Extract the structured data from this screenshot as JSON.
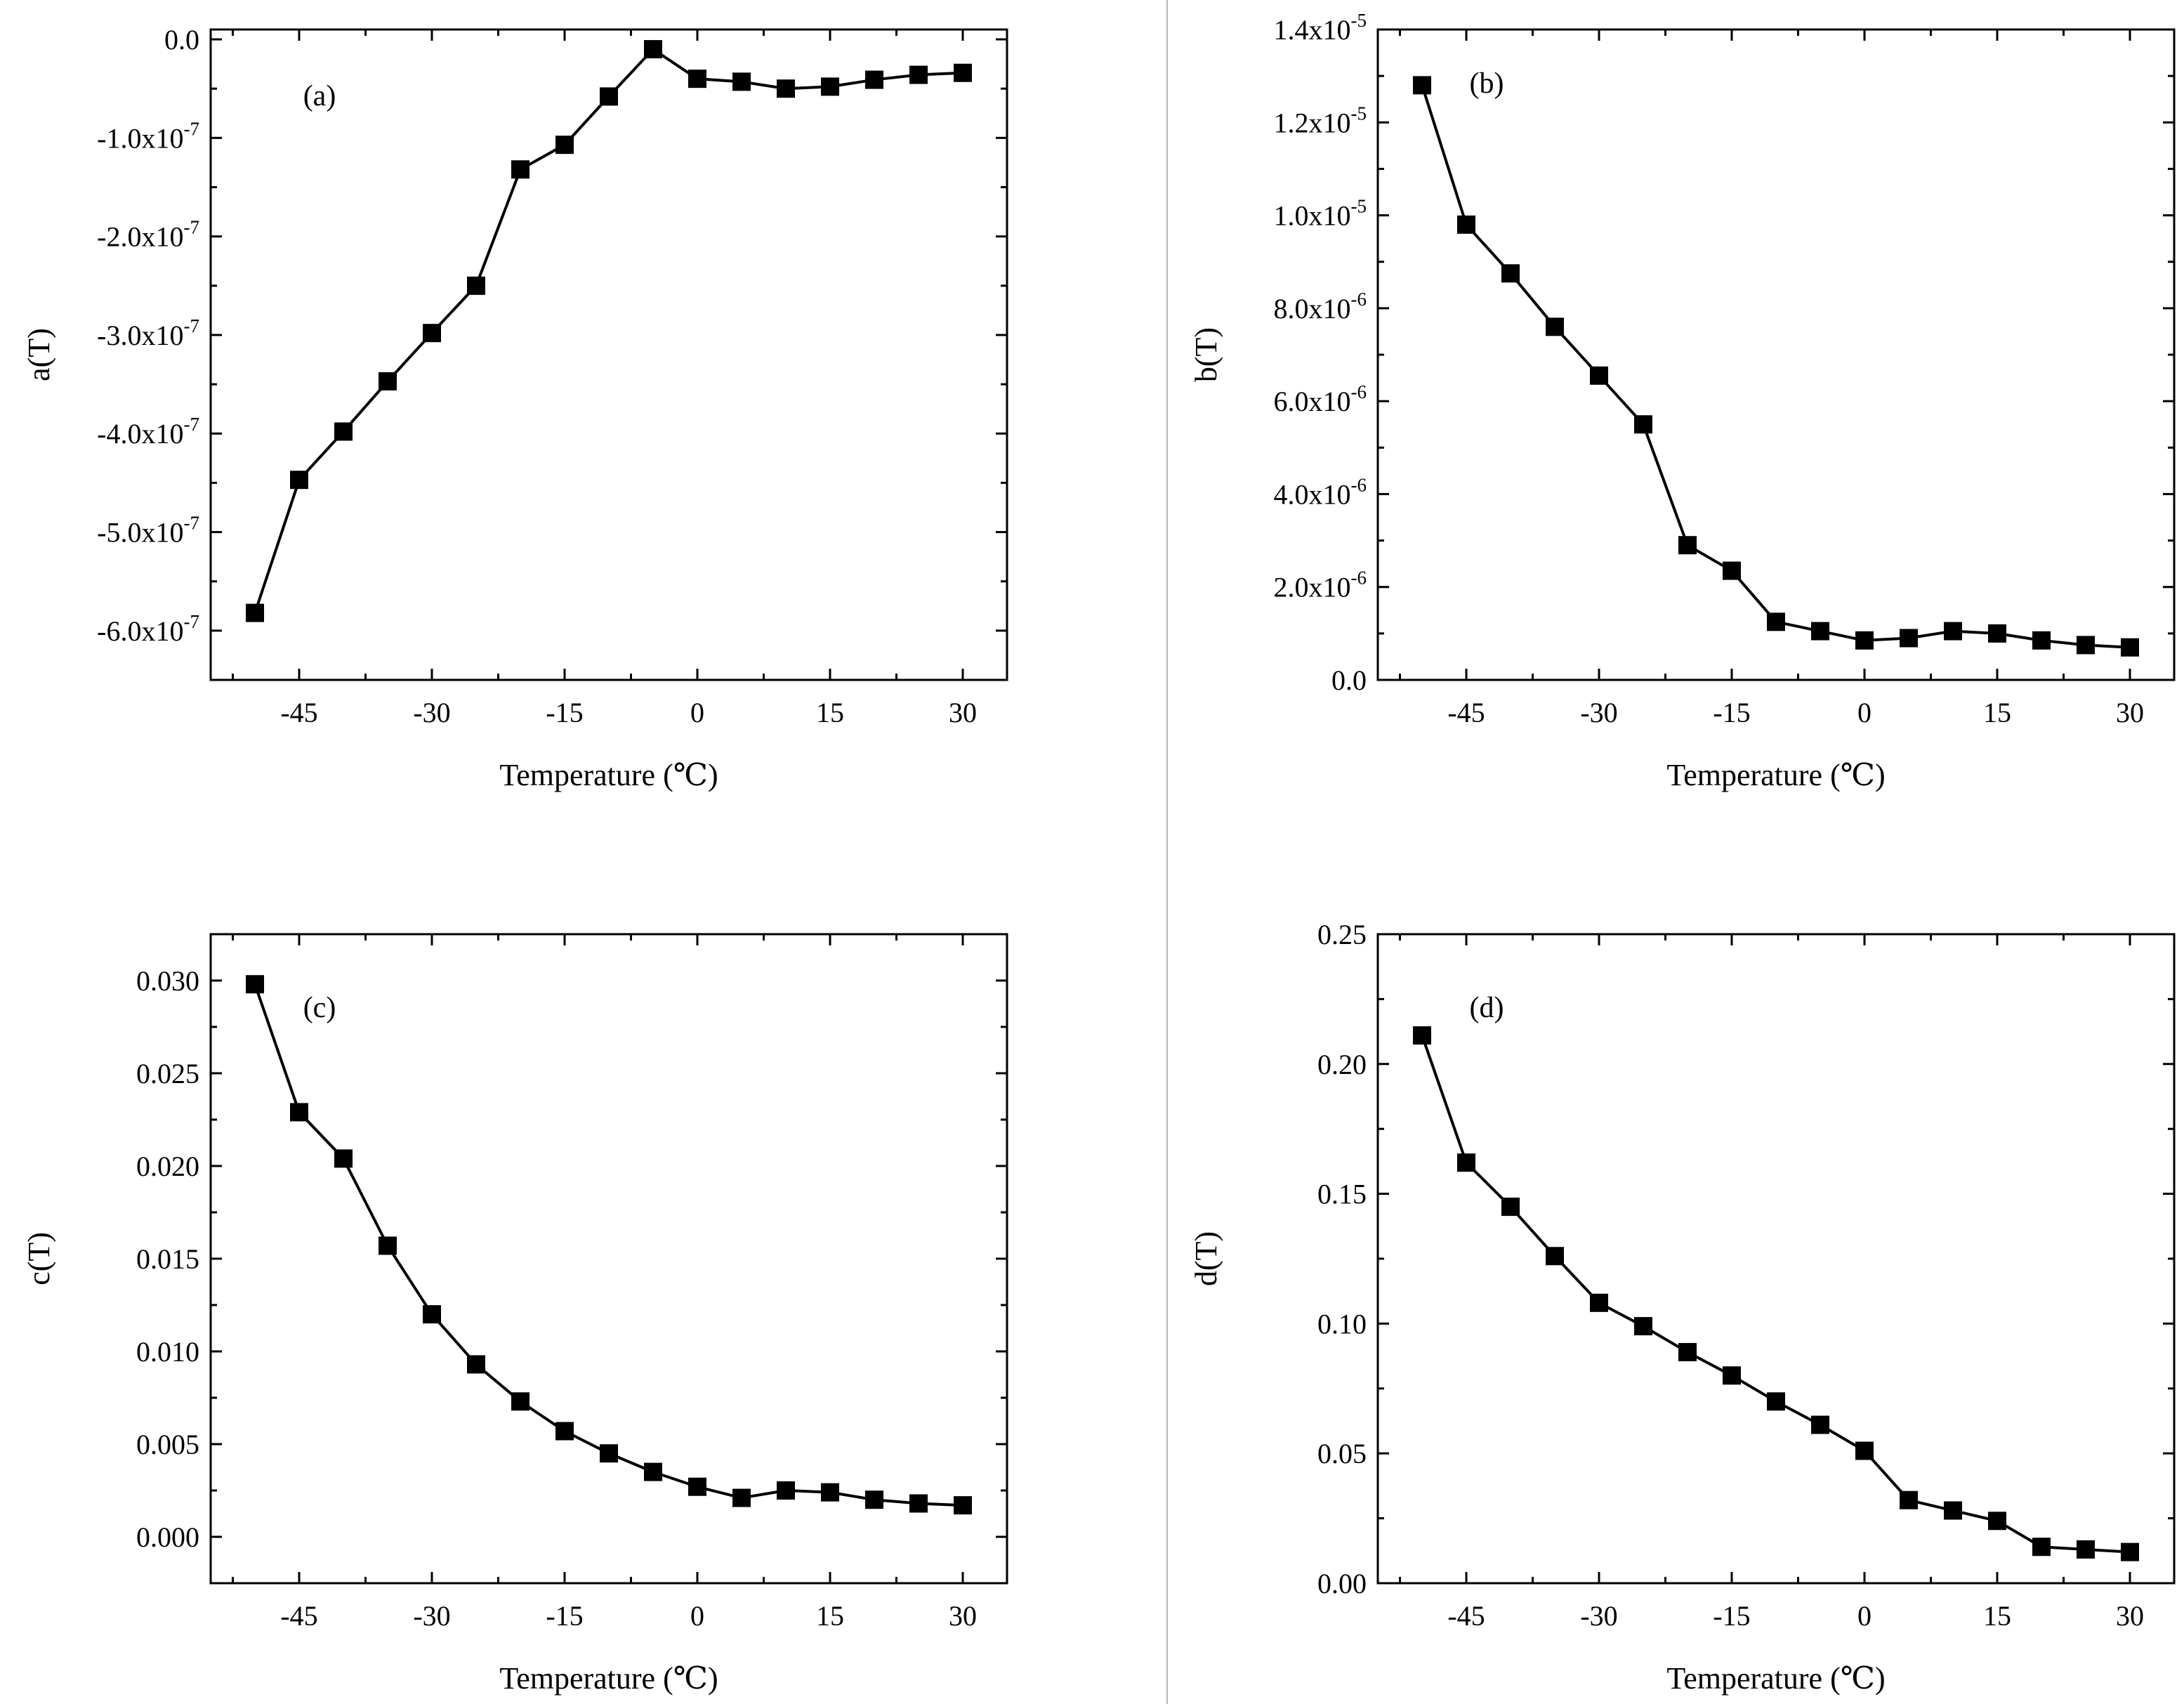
{
  "chart_data": [
    {
      "type": "line",
      "panel_label": "(a)",
      "xlabel": "Temperature (℃)",
      "ylabel": "a(T)",
      "xlim": [
        -55,
        35
      ],
      "ylim": [
        -6.5e-07,
        1e-08
      ],
      "xticks": [
        -45,
        -30,
        -15,
        0,
        15,
        30
      ],
      "yticks": [
        {
          "value": 0,
          "mantissa": "0.0",
          "exp": ""
        },
        {
          "value": -1e-07,
          "mantissa": "-1.0x10",
          "exp": "-7"
        },
        {
          "value": -2e-07,
          "mantissa": "-2.0x10",
          "exp": "-7"
        },
        {
          "value": -3e-07,
          "mantissa": "-3.0x10",
          "exp": "-7"
        },
        {
          "value": -4e-07,
          "mantissa": "-4.0x10",
          "exp": "-7"
        },
        {
          "value": -5e-07,
          "mantissa": "-5.0x10",
          "exp": "-7"
        },
        {
          "value": -6e-07,
          "mantissa": "-6.0x10",
          "exp": "-7"
        }
      ],
      "x": [
        -50,
        -45,
        -40,
        -35,
        -30,
        -25,
        -20,
        -15,
        -10,
        -5,
        0,
        5,
        10,
        15,
        20,
        25,
        30
      ],
      "values": [
        -5.82e-07,
        -4.47e-07,
        -3.98e-07,
        -3.47e-07,
        -2.98e-07,
        -2.5e-07,
        -1.32e-07,
        -1.07e-07,
        -5.8e-08,
        -1e-08,
        -4e-08,
        -4.3e-08,
        -5e-08,
        -4.8e-08,
        -4.1e-08,
        -3.6e-08,
        -3.4e-08
      ]
    },
    {
      "type": "line",
      "panel_label": "(b)",
      "xlabel": "Temperature (℃)",
      "ylabel": "b(T)",
      "xlim": [
        -55,
        35
      ],
      "ylim": [
        0,
        1.4e-05
      ],
      "xticks": [
        -45,
        -30,
        -15,
        0,
        15,
        30
      ],
      "yticks": [
        {
          "value": 0,
          "mantissa": "0.0",
          "exp": ""
        },
        {
          "value": 2e-06,
          "mantissa": "2.0x10",
          "exp": "-6"
        },
        {
          "value": 4e-06,
          "mantissa": "4.0x10",
          "exp": "-6"
        },
        {
          "value": 6e-06,
          "mantissa": "6.0x10",
          "exp": "-6"
        },
        {
          "value": 8e-06,
          "mantissa": "8.0x10",
          "exp": "-6"
        },
        {
          "value": 1e-05,
          "mantissa": "1.0x10",
          "exp": "-5"
        },
        {
          "value": 1.2e-05,
          "mantissa": "1.2x10",
          "exp": "-5"
        },
        {
          "value": 1.4e-05,
          "mantissa": "1.4x10",
          "exp": "-5"
        }
      ],
      "x": [
        -50,
        -45,
        -40,
        -35,
        -30,
        -25,
        -20,
        -15,
        -10,
        -5,
        0,
        5,
        10,
        15,
        20,
        25,
        30
      ],
      "values": [
        1.28e-05,
        9.8e-06,
        8.75e-06,
        7.6e-06,
        6.55e-06,
        5.5e-06,
        2.9e-06,
        2.35e-06,
        1.25e-06,
        1.05e-06,
        8.5e-07,
        9e-07,
        1.05e-06,
        1e-06,
        8.5e-07,
        7.5e-07,
        7e-07
      ]
    },
    {
      "type": "line",
      "panel_label": "(c)",
      "xlabel": "Temperature (℃)",
      "ylabel": "c(T)",
      "xlim": [
        -55,
        35
      ],
      "ylim": [
        -0.0025,
        0.0325
      ],
      "xticks": [
        -45,
        -30,
        -15,
        0,
        15,
        30
      ],
      "yticks": [
        {
          "value": 0,
          "mantissa": "0.000",
          "exp": ""
        },
        {
          "value": 0.005,
          "mantissa": "0.005",
          "exp": ""
        },
        {
          "value": 0.01,
          "mantissa": "0.010",
          "exp": ""
        },
        {
          "value": 0.015,
          "mantissa": "0.015",
          "exp": ""
        },
        {
          "value": 0.02,
          "mantissa": "0.020",
          "exp": ""
        },
        {
          "value": 0.025,
          "mantissa": "0.025",
          "exp": ""
        },
        {
          "value": 0.03,
          "mantissa": "0.030",
          "exp": ""
        }
      ],
      "x": [
        -50,
        -45,
        -40,
        -35,
        -30,
        -25,
        -20,
        -15,
        -10,
        -5,
        0,
        5,
        10,
        15,
        20,
        25,
        30
      ],
      "values": [
        0.0298,
        0.0229,
        0.0204,
        0.0157,
        0.012,
        0.0093,
        0.0073,
        0.0057,
        0.0045,
        0.0035,
        0.0027,
        0.0021,
        0.0025,
        0.0024,
        0.002,
        0.0018,
        0.0017
      ]
    },
    {
      "type": "line",
      "panel_label": "(d)",
      "xlabel": "Temperature (℃)",
      "ylabel": "d(T)",
      "xlim": [
        -55,
        35
      ],
      "ylim": [
        0,
        0.25
      ],
      "xticks": [
        -45,
        -30,
        -15,
        0,
        15,
        30
      ],
      "yticks": [
        {
          "value": 0,
          "mantissa": "0.00",
          "exp": ""
        },
        {
          "value": 0.05,
          "mantissa": "0.05",
          "exp": ""
        },
        {
          "value": 0.1,
          "mantissa": "0.10",
          "exp": ""
        },
        {
          "value": 0.15,
          "mantissa": "0.15",
          "exp": ""
        },
        {
          "value": 0.2,
          "mantissa": "0.20",
          "exp": ""
        },
        {
          "value": 0.25,
          "mantissa": "0.25",
          "exp": ""
        }
      ],
      "x": [
        -50,
        -45,
        -40,
        -35,
        -30,
        -25,
        -20,
        -15,
        -10,
        -5,
        0,
        5,
        10,
        15,
        20,
        25,
        30
      ],
      "values": [
        0.211,
        0.162,
        0.145,
        0.126,
        0.108,
        0.099,
        0.089,
        0.08,
        0.07,
        0.061,
        0.051,
        0.032,
        0.028,
        0.024,
        0.014,
        0.013,
        0.012
      ]
    }
  ]
}
